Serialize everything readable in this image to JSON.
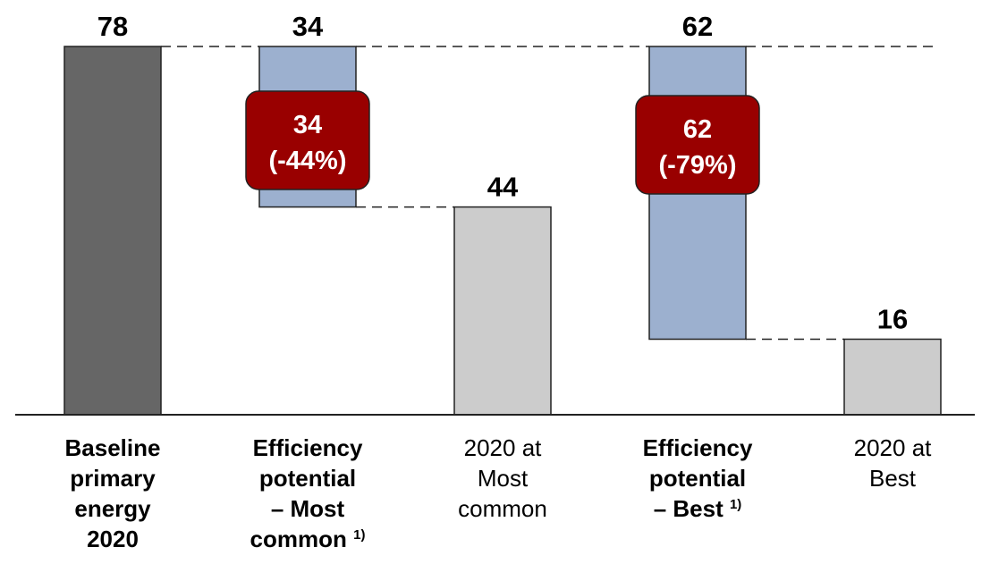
{
  "chart_data": {
    "type": "bar",
    "subtype": "waterfall",
    "ylim": [
      0,
      78
    ],
    "categories": [
      {
        "lines": [
          "Baseline",
          "primary",
          "energy 2020"
        ],
        "bold": true,
        "footnote": ""
      },
      {
        "lines": [
          "Efficiency",
          "potential",
          "– Most",
          "common"
        ],
        "bold": true,
        "footnote": "1)"
      },
      {
        "lines": [
          "2020 at",
          "Most common"
        ],
        "bold": false,
        "footnote": ""
      },
      {
        "lines": [
          "Efficiency",
          "potential",
          "– Best"
        ],
        "bold": true,
        "footnote": "1)"
      },
      {
        "lines": [
          "2020 at",
          "Best"
        ],
        "bold": false,
        "footnote": ""
      }
    ],
    "bars": [
      {
        "kind": "total",
        "bottom": 0,
        "top": 78,
        "value_label": "78",
        "color": "#666666"
      },
      {
        "kind": "reduction",
        "bottom": 44,
        "top": 78,
        "value_label": "34",
        "color": "#9cb0cf",
        "callout": {
          "line1": "34",
          "line2": "(-44%)"
        }
      },
      {
        "kind": "total",
        "bottom": 0,
        "top": 44,
        "value_label": "44",
        "color": "#cccccc"
      },
      {
        "kind": "reduction",
        "bottom": 16,
        "top": 78,
        "value_label": "62",
        "color": "#9cb0cf",
        "callout": {
          "line1": "62",
          "line2": "(-79%)"
        }
      },
      {
        "kind": "total",
        "bottom": 0,
        "top": 16,
        "value_label": "16",
        "color": "#cccccc"
      }
    ],
    "callout_color": "#990000"
  }
}
